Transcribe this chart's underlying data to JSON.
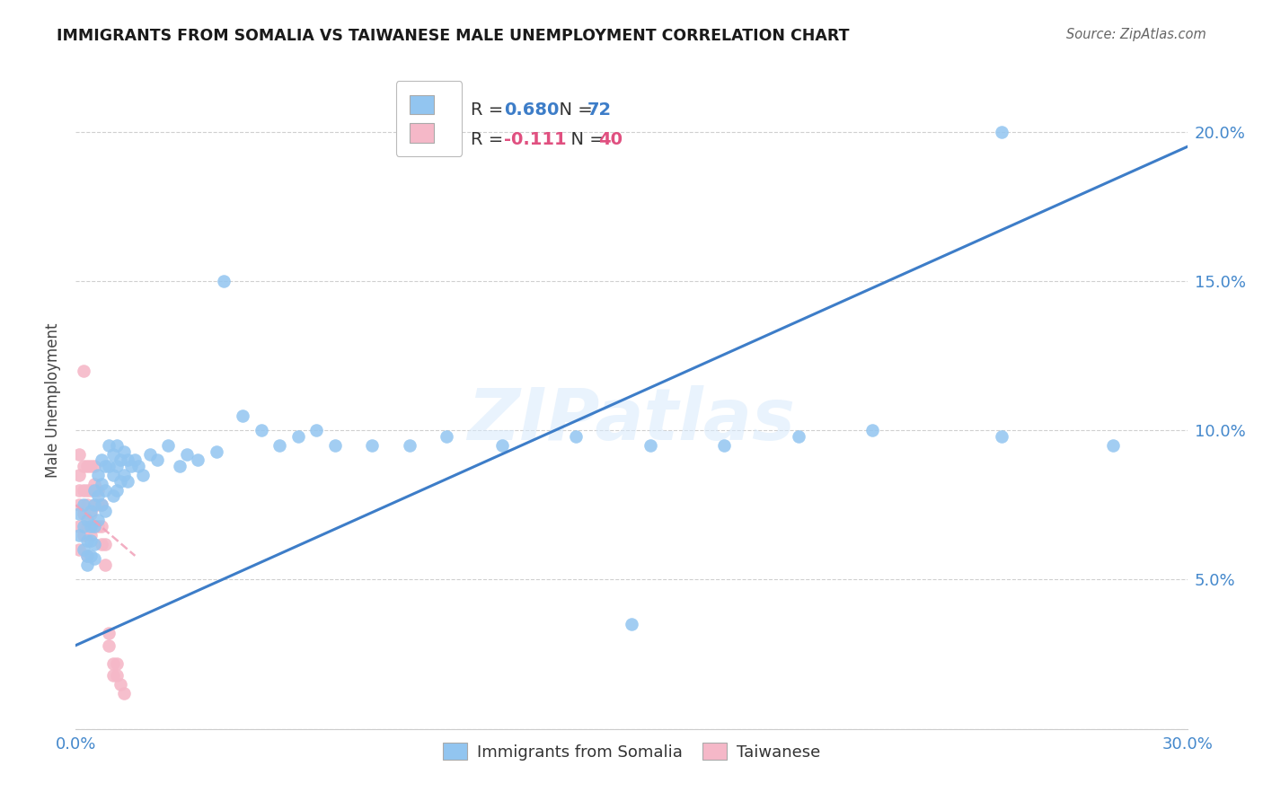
{
  "title": "IMMIGRANTS FROM SOMALIA VS TAIWANESE MALE UNEMPLOYMENT CORRELATION CHART",
  "source": "Source: ZipAtlas.com",
  "ylabel": "Male Unemployment",
  "xlim": [
    0.0,
    0.3
  ],
  "ylim": [
    0.0,
    0.22
  ],
  "x_ticks": [
    0.0,
    0.05,
    0.1,
    0.15,
    0.2,
    0.25,
    0.3
  ],
  "y_ticks": [
    0.0,
    0.05,
    0.1,
    0.15,
    0.2
  ],
  "grid_color": "#d0d0d0",
  "background_color": "#ffffff",
  "somalia_color": "#92C5F0",
  "taiwanese_color": "#F5B8C8",
  "somalia_line_color": "#3D7DC8",
  "taiwanese_line_color": "#F0A0B8",
  "watermark_text": "ZIPatlas",
  "legend_R_somalia": "0.680",
  "legend_N_somalia": "72",
  "legend_R_taiwanese": "-0.111",
  "legend_N_taiwanese": "40",
  "somalia_R_color": "#3D7DC8",
  "somalia_N_color": "#3D7DC8",
  "taiwanese_R_color": "#E05080",
  "taiwanese_N_color": "#E05080",
  "somalia_scatter_x": [
    0.001,
    0.001,
    0.002,
    0.002,
    0.002,
    0.003,
    0.003,
    0.003,
    0.003,
    0.004,
    0.004,
    0.004,
    0.004,
    0.005,
    0.005,
    0.005,
    0.005,
    0.005,
    0.006,
    0.006,
    0.006,
    0.007,
    0.007,
    0.007,
    0.008,
    0.008,
    0.008,
    0.009,
    0.009,
    0.01,
    0.01,
    0.01,
    0.011,
    0.011,
    0.011,
    0.012,
    0.012,
    0.013,
    0.013,
    0.014,
    0.014,
    0.015,
    0.016,
    0.017,
    0.018,
    0.02,
    0.022,
    0.025,
    0.028,
    0.03,
    0.033,
    0.038,
    0.04,
    0.045,
    0.05,
    0.055,
    0.06,
    0.065,
    0.07,
    0.08,
    0.09,
    0.1,
    0.115,
    0.135,
    0.155,
    0.175,
    0.195,
    0.215,
    0.25,
    0.28,
    0.25,
    0.15
  ],
  "somalia_scatter_y": [
    0.065,
    0.072,
    0.068,
    0.075,
    0.06,
    0.07,
    0.063,
    0.058,
    0.055,
    0.073,
    0.068,
    0.063,
    0.058,
    0.08,
    0.075,
    0.068,
    0.062,
    0.057,
    0.085,
    0.078,
    0.07,
    0.09,
    0.082,
    0.075,
    0.088,
    0.08,
    0.073,
    0.095,
    0.088,
    0.092,
    0.085,
    0.078,
    0.095,
    0.088,
    0.08,
    0.09,
    0.083,
    0.093,
    0.085,
    0.09,
    0.083,
    0.088,
    0.09,
    0.088,
    0.085,
    0.092,
    0.09,
    0.095,
    0.088,
    0.092,
    0.09,
    0.093,
    0.15,
    0.105,
    0.1,
    0.095,
    0.098,
    0.1,
    0.095,
    0.095,
    0.095,
    0.098,
    0.095,
    0.098,
    0.095,
    0.095,
    0.098,
    0.1,
    0.098,
    0.095,
    0.2,
    0.035
  ],
  "taiwanese_scatter_x": [
    0.001,
    0.001,
    0.001,
    0.001,
    0.001,
    0.001,
    0.002,
    0.002,
    0.002,
    0.002,
    0.002,
    0.003,
    0.003,
    0.003,
    0.003,
    0.003,
    0.004,
    0.004,
    0.004,
    0.004,
    0.005,
    0.005,
    0.005,
    0.005,
    0.006,
    0.006,
    0.006,
    0.007,
    0.007,
    0.007,
    0.008,
    0.008,
    0.009,
    0.009,
    0.01,
    0.01,
    0.011,
    0.011,
    0.012,
    0.013
  ],
  "taiwanese_scatter_y": [
    0.06,
    0.068,
    0.075,
    0.08,
    0.085,
    0.092,
    0.065,
    0.072,
    0.08,
    0.088,
    0.12,
    0.068,
    0.075,
    0.08,
    0.088,
    0.058,
    0.072,
    0.08,
    0.088,
    0.065,
    0.075,
    0.082,
    0.088,
    0.068,
    0.075,
    0.08,
    0.068,
    0.075,
    0.068,
    0.062,
    0.062,
    0.055,
    0.032,
    0.028,
    0.022,
    0.018,
    0.022,
    0.018,
    0.015,
    0.012
  ],
  "somalia_trendline_x": [
    0.0,
    0.3
  ],
  "somalia_trendline_y": [
    0.028,
    0.195
  ],
  "taiwanese_trendline_x": [
    0.0,
    0.016
  ],
  "taiwanese_trendline_y": [
    0.075,
    0.058
  ]
}
